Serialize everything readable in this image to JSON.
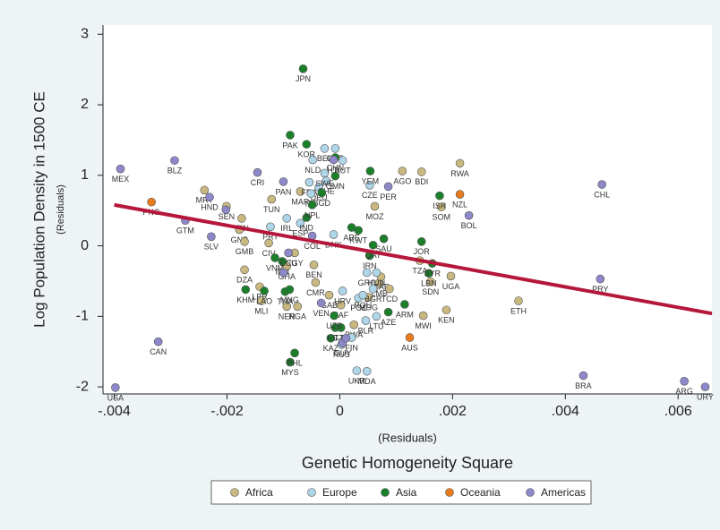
{
  "chart_data": {
    "type": "scatter",
    "y_title": "Log Population Density in 1500 CE",
    "y_subtitle": "(Residuals)",
    "x_subtitle": "(Residuals)",
    "x_title": "Genetic Homogeneity Square",
    "xlim": [
      -0.0042,
      0.0066
    ],
    "ylim": [
      -2.1,
      3.13
    ],
    "xticks": [
      {
        "value": -0.004,
        "label": "-.004"
      },
      {
        "value": -0.002,
        "label": "-.002"
      },
      0,
      {
        "value": 0.002,
        "label": ".002"
      },
      {
        "value": 0.004,
        "label": ".004"
      },
      {
        "value": 0.006,
        "label": ".006"
      }
    ],
    "yticks": [
      -2,
      -1,
      0,
      1,
      2,
      3
    ],
    "grid": false,
    "fit_line": {
      "color": "#b5173b",
      "x": [
        -0.004,
        0.0066
      ],
      "y": [
        0.58,
        -0.96
      ]
    },
    "series": [
      {
        "name": "Africa",
        "color": "#c9b981",
        "x": [
          0.00213,
          0.00145,
          0.00111,
          0.00317,
          0.00189,
          0.00148,
          0.00197,
          0.00161,
          0.0007,
          0.00073,
          0.00062,
          0.0018,
          -0.0024,
          -0.00201,
          -0.00174,
          -0.00178,
          -0.00169,
          -0.00126,
          -0.00169,
          -0.00142,
          -0.00094,
          -0.00075,
          0.00088,
          2e-05,
          -0.00121,
          -0.0007,
          -0.0008,
          -0.00019,
          -0.00043,
          -0.00094,
          -0.00046,
          -0.00139,
          0.00051,
          0.00025,
          0.00142
        ],
        "y": [
          1.17,
          1.05,
          1.06,
          -0.78,
          -0.91,
          -0.99,
          -0.43,
          -0.51,
          -0.53,
          -0.44,
          0.56,
          0.55,
          0.79,
          0.56,
          0.39,
          0.23,
          0.06,
          0.04,
          -0.34,
          -0.58,
          -0.86,
          -0.86,
          -0.61,
          -0.84,
          0.66,
          0.77,
          -0.1,
          -0.7,
          -0.52,
          -0.29,
          -0.27,
          -0.78,
          -0.73,
          -1.12,
          -0.21
        ],
        "labels": [
          "RWA",
          "BDI",
          "AGO",
          "ETH",
          "KEN",
          "MWI",
          "UGA",
          "SDN",
          "ZMB",
          "CAF",
          "MOZ",
          "SOM",
          "MRT",
          "SEN",
          "GIN",
          "GNB",
          "GMB",
          "CIV",
          "DZA",
          "LBR",
          "NER",
          "NGA",
          "TCD",
          "ZAF",
          "TUN",
          "MAR",
          "EGY",
          "GAB",
          "CMR",
          "GHA",
          "BEN",
          "MLI",
          "MDG",
          "BWA",
          "TZA"
        ]
      },
      {
        "name": "Europe",
        "color": "#aed6e8",
        "x": [
          0.0003,
          0.00048,
          3e-05,
          0.00046,
          0.00065,
          0.00021,
          -0.00048,
          -0.00027,
          -8e-05,
          -0.00054,
          -0.00037,
          -0.00051,
          -0.00024,
          5e-05,
          0.00053,
          -0.00011,
          -0.00123,
          -0.0007,
          -0.00094,
          5e-05,
          0.00033,
          0.00065,
          0.00048,
          0.00059,
          0.00041,
          -0.00027
        ],
        "y": [
          -1.77,
          -1.78,
          -1.4,
          -1.06,
          -1.0,
          -1.3,
          1.22,
          1.38,
          1.38,
          0.9,
          0.83,
          0.74,
          0.92,
          1.21,
          0.86,
          0.16,
          0.27,
          0.32,
          0.39,
          -0.64,
          -0.74,
          -0.38,
          -0.38,
          -0.61,
          -0.7,
          1.03
        ],
        "labels": [
          "UKR",
          "MDA",
          "RUS",
          "BLR",
          "LTU",
          "FIN",
          "NLD",
          "BEL",
          "GBR",
          "FRA",
          "DEU",
          "ITA",
          "CHE",
          "AUT",
          "CZE",
          "DNK",
          "PRT",
          "ESP",
          "IRL",
          "HRV",
          "POL",
          "HUN",
          "GRC",
          "BGR",
          "ROU",
          "SWE"
        ]
      },
      {
        "name": "Asia",
        "color": "#1b7f2a",
        "x": [
          -0.00065,
          -0.00059,
          -0.00088,
          -8e-05,
          -0.00059,
          -0.00032,
          -0.00049,
          0.00054,
          0.00177,
          -8e-05,
          0.00021,
          0.00078,
          0.00145,
          0.00158,
          -0.00115,
          -0.00097,
          -0.00134,
          -0.00167,
          -0.00088,
          -0.0008,
          -0.00016,
          -8e-05,
          0.00086,
          0.00115,
          2e-05,
          -0.0001,
          -0.00089,
          0.00053,
          0.00059,
          0.00033,
          0.00164,
          -0.00102
        ],
        "y": [
          2.51,
          1.44,
          1.57,
          1.25,
          0.4,
          0.75,
          0.58,
          1.06,
          0.71,
          0.99,
          0.26,
          0.1,
          0.06,
          -0.39,
          -0.17,
          -0.65,
          -0.64,
          -0.62,
          -1.65,
          -1.52,
          -1.31,
          -1.16,
          -0.94,
          -0.83,
          -1.16,
          -0.99,
          -0.62,
          -0.14,
          0.01,
          0.22,
          -0.25,
          -0.22
        ],
        "labels": [
          "JPN",
          "KOR",
          "PAK",
          "CHN",
          "IND",
          "BGD",
          "NPL",
          "YEM",
          "ISR",
          "OMN",
          "ARE",
          "SAU",
          "JOR",
          "LBN",
          "VNM",
          "THA",
          "LAO",
          "KHM",
          "MYS",
          "PHL",
          "KAZ",
          "KGZ",
          "AZE",
          "ARM",
          "TJK",
          "UZB",
          "MNG",
          "IRN",
          "QAT",
          "KWT",
          "SYR",
          "IDN"
        ]
      },
      {
        "name": "Oceania",
        "color": "#e87b1c",
        "x": [
          -0.00334,
          0.00213,
          0.00124
        ],
        "y": [
          0.62,
          0.73,
          -1.3
        ],
        "labels": [
          "PNG",
          "NZL",
          "AUS"
        ]
      },
      {
        "name": "Americas",
        "color": "#8d88c9",
        "x": [
          -0.00389,
          -0.00293,
          -0.00231,
          -0.00274,
          -0.00228,
          -0.00146,
          -0.00202,
          -0.00322,
          -0.00398,
          0.00465,
          0.00229,
          0.00462,
          0.00432,
          0.00611,
          0.00648,
          0.00086,
          -0.001,
          -0.00011,
          -0.00033,
          -0.00091,
          -0.00049,
          5e-05,
          -0.001,
          0.00011
        ],
        "y": [
          1.09,
          1.21,
          0.69,
          0.36,
          0.13,
          1.04,
          0.51,
          -1.36,
          -2.01,
          0.87,
          0.43,
          -0.47,
          -1.84,
          -1.92,
          -2.0,
          0.84,
          0.91,
          1.22,
          -0.81,
          -0.1,
          0.14,
          -1.38,
          -0.38,
          -1.31
        ],
        "labels": [
          "MEX",
          "BLZ",
          "HND",
          "GTM",
          "SLV",
          "CRI",
          null,
          "CAN",
          "USA",
          "CHL",
          "BOL",
          "PRY",
          "BRA",
          "ARG",
          "URY",
          "PER",
          "PAN",
          "HTI",
          "VEN",
          "ECU",
          "COL",
          "GUY",
          null,
          null
        ]
      }
    ]
  }
}
